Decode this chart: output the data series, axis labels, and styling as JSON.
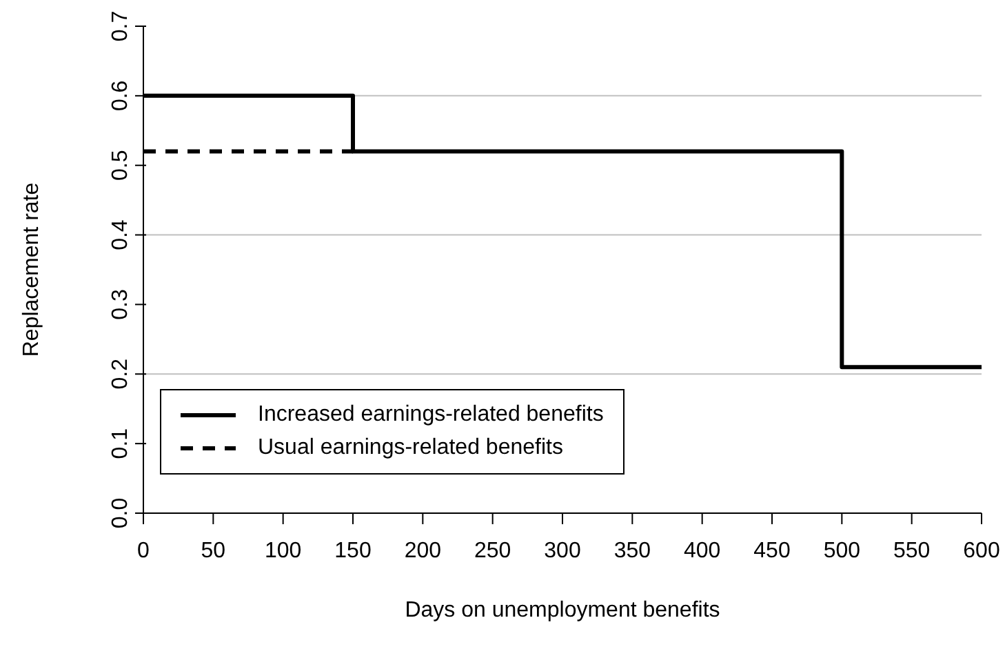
{
  "chart_data": {
    "type": "step",
    "xlabel": "Days on unemployment benefits",
    "ylabel": "Replacement rate",
    "xlim": [
      0,
      600
    ],
    "xticks": [
      0,
      50,
      100,
      150,
      200,
      250,
      300,
      350,
      400,
      450,
      500,
      550,
      600
    ],
    "ylim": [
      0,
      0.7
    ],
    "yticks": [
      {
        "value": 0,
        "label": "0.0"
      },
      0.1,
      0.2,
      0.3,
      0.4,
      0.5,
      0.6,
      0.7
    ],
    "series": [
      {
        "name": "Increased earnings-related benefits",
        "color": "#000000",
        "line_style": "solid",
        "x": [
          0,
          150,
          500,
          600
        ],
        "values": [
          0.6,
          0.52,
          0.21,
          0.21
        ]
      },
      {
        "name": "Usual earnings-related benefits",
        "color": "#000000",
        "line_style": "dashed",
        "x": [
          0,
          150
        ],
        "values": [
          0.52,
          0.52
        ]
      }
    ],
    "ref_lines": [
      {
        "axis": "y",
        "value": 0.2,
        "color": "#c0c0c0"
      },
      {
        "axis": "y",
        "value": 0.4,
        "color": "#c0c0c0"
      },
      {
        "axis": "y",
        "value": 0.6,
        "color": "#c0c0c0"
      }
    ],
    "legend": "bottom left",
    "marker": "none"
  }
}
